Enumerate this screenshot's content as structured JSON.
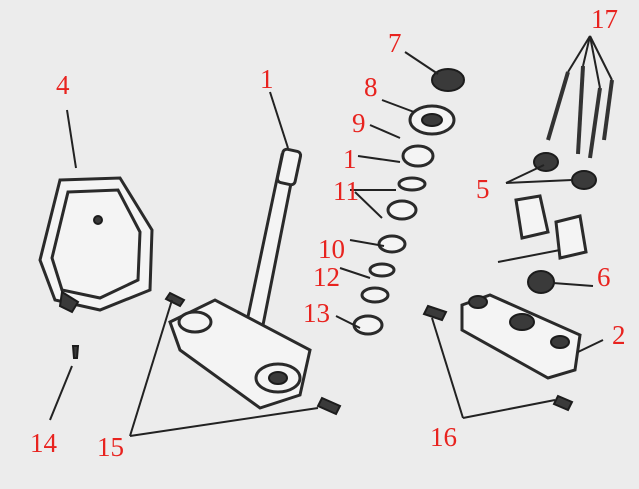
{
  "diagram": {
    "labels": [
      {
        "id": "l1a",
        "text": "1"
      },
      {
        "id": "l1b",
        "text": "1"
      },
      {
        "id": "l2",
        "text": "2"
      },
      {
        "id": "l4",
        "text": "4"
      },
      {
        "id": "l5",
        "text": "5"
      },
      {
        "id": "l6",
        "text": "6"
      },
      {
        "id": "l7",
        "text": "7"
      },
      {
        "id": "l8",
        "text": "8"
      },
      {
        "id": "l9",
        "text": "9"
      },
      {
        "id": "l10",
        "text": "10"
      },
      {
        "id": "l11",
        "text": "11"
      },
      {
        "id": "l12",
        "text": "12"
      },
      {
        "id": "l13",
        "text": "13"
      },
      {
        "id": "l14",
        "text": "14"
      },
      {
        "id": "l15",
        "text": "15"
      },
      {
        "id": "l16",
        "text": "16"
      },
      {
        "id": "l17",
        "text": "17"
      }
    ],
    "label_color": "#e8231f",
    "line_color": "#222222"
  }
}
